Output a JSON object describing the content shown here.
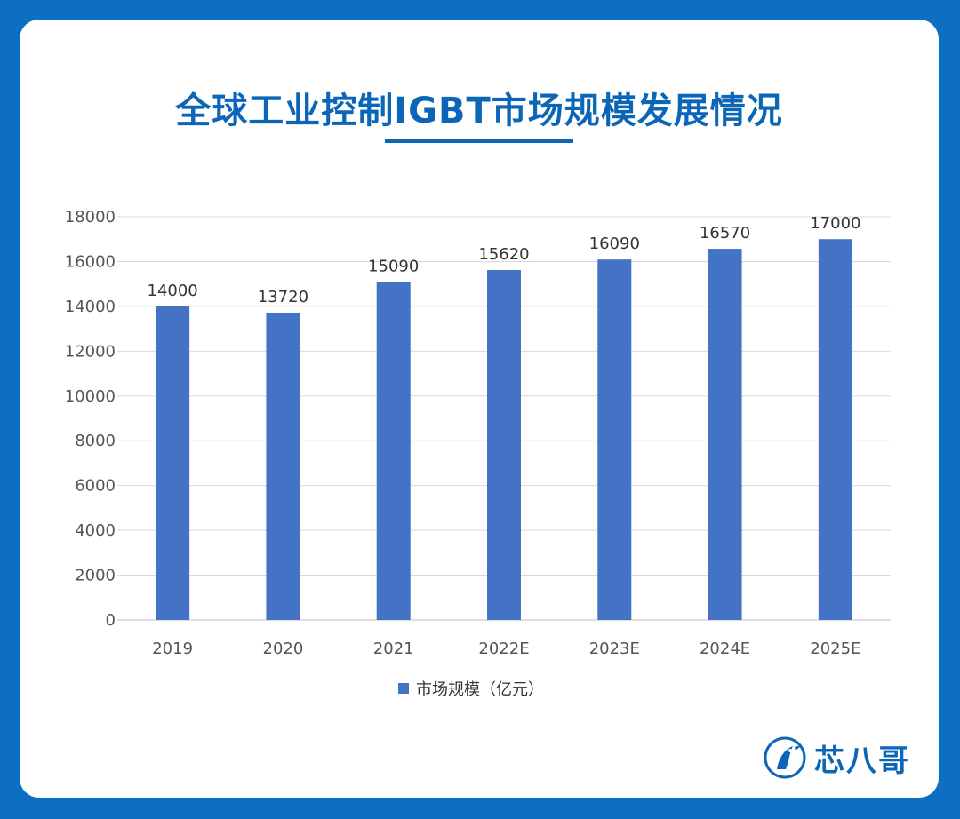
{
  "title": "全球工业控制IGBT市场规模发展情况",
  "brand": {
    "name": "芯八哥",
    "color": "#0b66b7"
  },
  "chart_data": {
    "type": "bar",
    "categories": [
      "2019",
      "2020",
      "2021",
      "2022E",
      "2023E",
      "2024E",
      "2025E"
    ],
    "series": [
      {
        "name": "市场规模（亿元）",
        "values": [
          14000,
          13720,
          15090,
          15620,
          16090,
          16570,
          17000
        ],
        "color": "#4472c4"
      }
    ],
    "data_labels": [
      "14000",
      "13720",
      "15090",
      "15620",
      "16090",
      "16570",
      "17000"
    ],
    "yticks": [
      "0",
      "2000",
      "4000",
      "6000",
      "8000",
      "10000",
      "12000",
      "14000",
      "16000",
      "18000"
    ],
    "ylim": [
      0,
      18000
    ],
    "grid": true,
    "legend": "bottom",
    "xlabel": "",
    "ylabel": ""
  }
}
